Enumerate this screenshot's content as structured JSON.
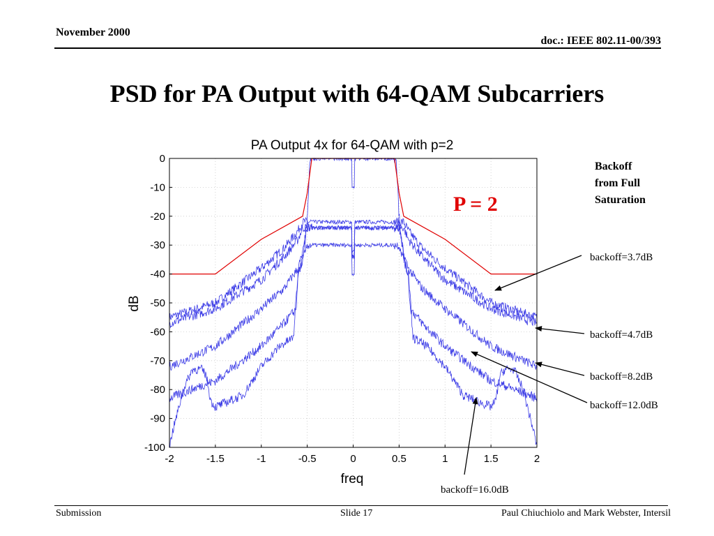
{
  "header": {
    "date": "November 2000",
    "doc": "doc.: IEEE 802.11-00/393"
  },
  "slide_title": "PSD for PA Output with 64-QAM Subcarriers",
  "footer": {
    "left": "Submission",
    "center": "Slide 17",
    "right": "Paul Chiuchiolo and Mark Webster, Intersil"
  },
  "colors": {
    "mask": "#e00000",
    "trace": "#3a3ae6",
    "p_label": "#e00000",
    "grid": "#c8c8c8"
  },
  "chart_data": {
    "type": "line",
    "title": "PA Output 4x for 64-QAM with p=2",
    "xlabel": "freq",
    "ylabel": "dB",
    "xlim": [
      -2,
      2
    ],
    "ylim": [
      -100,
      0
    ],
    "xticks": [
      -2,
      -1.5,
      -1,
      -0.5,
      0,
      0.5,
      1,
      1.5,
      2
    ],
    "xtick_labels": [
      "-2",
      "-1.5",
      "-1",
      "-0.5",
      "0",
      "0.5",
      "1",
      "1.5",
      "2"
    ],
    "yticks": [
      0,
      -10,
      -20,
      -30,
      -40,
      -50,
      -60,
      -70,
      -80,
      -90,
      -100
    ],
    "ytick_labels": [
      "0",
      "-10",
      "-20",
      "-30",
      "-40",
      "-50",
      "-60",
      "-70",
      "-80",
      "-90",
      "-100"
    ],
    "grid": true,
    "mask": {
      "x": [
        -2,
        -1.5,
        -1,
        -0.55,
        -0.5,
        -0.45,
        0.45,
        0.5,
        0.55,
        1,
        1.5,
        2
      ],
      "y": [
        -40,
        -40,
        -28,
        -20,
        -12,
        0,
        0,
        -12,
        -20,
        -28,
        -40,
        -40
      ]
    },
    "series": [
      {
        "x": [
          -2,
          -1.5,
          -1,
          -0.75,
          -0.6,
          -0.55,
          0.55,
          0.6,
          0.75,
          1,
          1.5,
          2
        ],
        "y": [
          -55,
          -50,
          -38,
          -31,
          -25,
          -22,
          -22,
          -25,
          -31,
          -38,
          -50,
          -55
        ]
      },
      {
        "x": [
          -2,
          -1.5,
          -1,
          -0.75,
          -0.6,
          -0.55,
          0.55,
          0.6,
          0.75,
          1,
          1.5,
          2
        ],
        "y": [
          -57,
          -52,
          -42,
          -34,
          -28,
          -24,
          -24,
          -28,
          -34,
          -42,
          -52,
          -57
        ]
      },
      {
        "x": [
          -2,
          -1.5,
          -1,
          -0.75,
          -0.6,
          -0.55,
          -0.5,
          0.5,
          0.55,
          0.6,
          0.75,
          1,
          1.5,
          2
        ],
        "y": [
          -72,
          -65,
          -52,
          -45,
          -38,
          -33,
          -24,
          -24,
          -33,
          -38,
          -45,
          -52,
          -65,
          -72
        ]
      },
      {
        "x": [
          -2,
          -1.6,
          -1.5,
          -1,
          -0.75,
          -0.62,
          -0.6,
          -0.5,
          0.5,
          0.6,
          0.62,
          0.75,
          1,
          1.5,
          1.6,
          2
        ],
        "y": [
          -83,
          -78,
          -77,
          -65,
          -57,
          -52,
          -40,
          -30,
          -30,
          -40,
          -52,
          -57,
          -65,
          -77,
          -78,
          -83
        ]
      },
      {
        "x": [
          -2,
          -1.97,
          -1.92,
          -1.85,
          -1.75,
          -1.65,
          -1.6,
          -1.55,
          -1.5,
          -1.2,
          -1,
          -0.8,
          -0.65,
          -0.62,
          -0.6,
          -0.55,
          -0.5,
          -0.47,
          0.47,
          0.5,
          0.55,
          0.6,
          0.62,
          0.65,
          0.8,
          1,
          1.2,
          1.5,
          1.55,
          1.6,
          1.65,
          1.75,
          1.85,
          1.92,
          1.97,
          2
        ],
        "y": [
          -100,
          -95,
          -89,
          -80,
          -73,
          -73,
          -75,
          -84,
          -86,
          -82,
          -72,
          -65,
          -62,
          -48,
          -40,
          -35,
          -20,
          0,
          0,
          -20,
          -35,
          -40,
          -48,
          -62,
          -65,
          -72,
          -82,
          -86,
          -84,
          -75,
          -73,
          -73,
          -80,
          -89,
          -95,
          -100
        ]
      }
    ],
    "annotations": {
      "legend_title": [
        "Backoff",
        "from Full",
        "Saturation"
      ],
      "p_label": "P = 2",
      "labels": [
        "backoff=3.7dB",
        "backoff=4.7dB",
        "backoff=8.2dB",
        "backoff=12.0dB",
        "backoff=16.0dB"
      ]
    }
  }
}
